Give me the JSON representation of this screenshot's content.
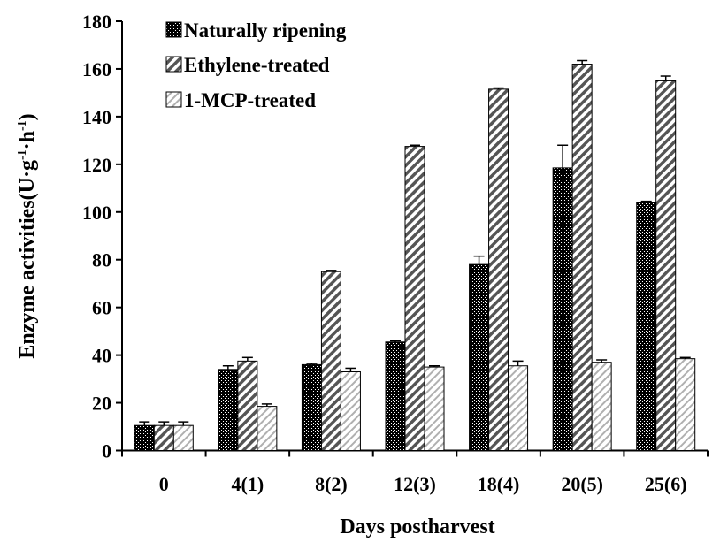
{
  "chart_data": {
    "type": "bar",
    "title": "",
    "xlabel": "Days postharvest",
    "ylabel": "Enzyme activities(U·g-1·h-1)",
    "ylabel_parts": {
      "main": "Enzyme activities(U·g",
      "sup1": "-1",
      "mid": "·h",
      "sup2": "-1",
      "end": ")"
    },
    "ylim": [
      0,
      180
    ],
    "yticks": [
      0,
      20,
      40,
      60,
      80,
      100,
      120,
      140,
      160,
      180
    ],
    "categories": [
      "0",
      "4(1)",
      "8(2)",
      "12(3)",
      "18(4)",
      "20(5)",
      "25(6)"
    ],
    "legend_position": "top-left",
    "grid": false,
    "series": [
      {
        "name": "Naturally ripening",
        "fill": "black-checker",
        "values": [
          10.5,
          34,
          36,
          45.5,
          78,
          118.5,
          104
        ],
        "errors": [
          1.5,
          1.5,
          0.5,
          0.5,
          3.5,
          9.5,
          0.5
        ]
      },
      {
        "name": "Ethylene-treated",
        "fill": "dense-diagonal",
        "values": [
          10.5,
          37.5,
          75,
          127.5,
          151.5,
          162,
          155
        ],
        "errors": [
          1.5,
          1.5,
          0.5,
          0.5,
          0.5,
          1.5,
          2
        ]
      },
      {
        "name": "1-MCP-treated",
        "fill": "light-diagonal",
        "values": [
          10.5,
          18.5,
          33,
          35,
          35.5,
          37,
          38.5
        ],
        "errors": [
          1.5,
          1,
          1.5,
          0.5,
          2,
          1,
          0.5
        ]
      }
    ]
  }
}
